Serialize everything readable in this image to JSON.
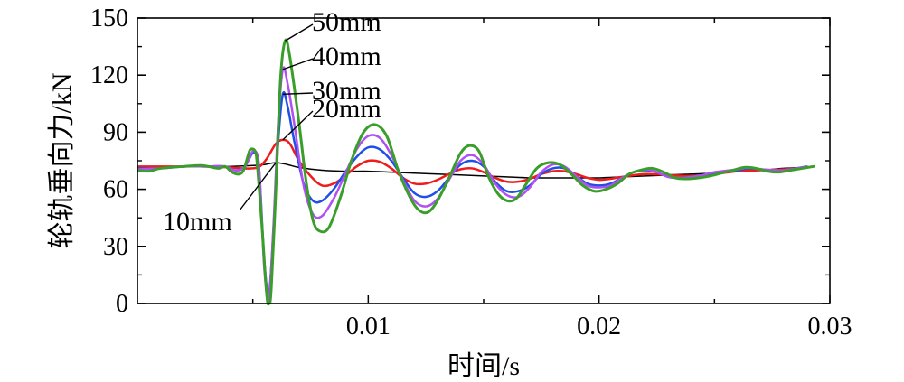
{
  "chart_data": {
    "type": "line",
    "xlabel": "时间/s",
    "ylabel": "轮轨垂向力/kN",
    "xlim": [
      0,
      0.03
    ],
    "ylim": [
      0,
      150
    ],
    "xticks": [
      "0.01",
      "0.02",
      "0.03"
    ],
    "yticks": [
      "0",
      "30",
      "60",
      "90",
      "120",
      "150"
    ],
    "grid": false,
    "series": [
      {
        "name": "10mm",
        "color": "#000000",
        "width": 1.5,
        "points": [
          [
            0,
            71
          ],
          [
            0.001,
            71.5
          ],
          [
            0.002,
            72
          ],
          [
            0.003,
            72
          ],
          [
            0.004,
            72
          ],
          [
            0.005,
            72.5
          ],
          [
            0.0055,
            73
          ],
          [
            0.006,
            74
          ],
          [
            0.0065,
            73
          ],
          [
            0.007,
            71.5
          ],
          [
            0.008,
            70
          ],
          [
            0.009,
            69.5
          ],
          [
            0.01,
            69.5
          ],
          [
            0.011,
            69
          ],
          [
            0.012,
            68.5
          ],
          [
            0.013,
            68
          ],
          [
            0.014,
            67.5
          ],
          [
            0.015,
            67
          ],
          [
            0.016,
            66.5
          ],
          [
            0.017,
            66
          ],
          [
            0.018,
            66
          ],
          [
            0.019,
            66
          ],
          [
            0.02,
            66
          ],
          [
            0.021,
            66.5
          ],
          [
            0.022,
            67
          ],
          [
            0.023,
            67.5
          ],
          [
            0.024,
            68
          ],
          [
            0.025,
            68.5
          ],
          [
            0.026,
            69.5
          ],
          [
            0.027,
            70
          ],
          [
            0.028,
            71
          ],
          [
            0.029,
            71.5
          ]
        ]
      },
      {
        "name": "20mm",
        "color": "#ee1c1c",
        "width": 2.5,
        "points": [
          [
            0,
            72
          ],
          [
            0.001,
            72
          ],
          [
            0.002,
            72
          ],
          [
            0.003,
            72
          ],
          [
            0.004,
            71.5
          ],
          [
            0.0045,
            71
          ],
          [
            0.005,
            71
          ],
          [
            0.0053,
            72
          ],
          [
            0.0056,
            76
          ],
          [
            0.006,
            84
          ],
          [
            0.0063,
            86
          ],
          [
            0.0066,
            84
          ],
          [
            0.007,
            75
          ],
          [
            0.0075,
            67
          ],
          [
            0.008,
            62
          ],
          [
            0.0085,
            63
          ],
          [
            0.009,
            67
          ],
          [
            0.0095,
            72
          ],
          [
            0.01,
            75
          ],
          [
            0.0105,
            74.5
          ],
          [
            0.011,
            71
          ],
          [
            0.0115,
            66
          ],
          [
            0.012,
            63
          ],
          [
            0.0125,
            63
          ],
          [
            0.013,
            65
          ],
          [
            0.0135,
            68
          ],
          [
            0.014,
            70.5
          ],
          [
            0.0145,
            71
          ],
          [
            0.015,
            69
          ],
          [
            0.0155,
            66
          ],
          [
            0.016,
            64
          ],
          [
            0.0165,
            64
          ],
          [
            0.017,
            65.5
          ],
          [
            0.0175,
            68
          ],
          [
            0.018,
            69.5
          ],
          [
            0.0185,
            69.5
          ],
          [
            0.019,
            68
          ],
          [
            0.0195,
            66
          ],
          [
            0.02,
            65
          ],
          [
            0.0205,
            65.5
          ],
          [
            0.021,
            66.5
          ],
          [
            0.022,
            68
          ],
          [
            0.023,
            67.5
          ],
          [
            0.024,
            67
          ],
          [
            0.025,
            68
          ],
          [
            0.026,
            69.5
          ],
          [
            0.027,
            70
          ],
          [
            0.028,
            70.5
          ],
          [
            0.029,
            71.5
          ]
        ]
      },
      {
        "name": "30mm",
        "color": "#1f4fe8",
        "width": 2.5,
        "points": [
          [
            0,
            71
          ],
          [
            0.001,
            71
          ],
          [
            0.002,
            72
          ],
          [
            0.003,
            72
          ],
          [
            0.0038,
            72
          ],
          [
            0.0042,
            70
          ],
          [
            0.0046,
            71
          ],
          [
            0.0048,
            75
          ],
          [
            0.005,
            79
          ],
          [
            0.0052,
            77
          ],
          [
            0.0053,
            66
          ],
          [
            0.0055,
            22
          ],
          [
            0.0057,
            5
          ],
          [
            0.0059,
            40
          ],
          [
            0.0061,
            85
          ],
          [
            0.0063,
            110
          ],
          [
            0.0065,
            104
          ],
          [
            0.0068,
            85
          ],
          [
            0.0072,
            63
          ],
          [
            0.0076,
            54
          ],
          [
            0.008,
            54
          ],
          [
            0.0085,
            60
          ],
          [
            0.009,
            69
          ],
          [
            0.0095,
            77
          ],
          [
            0.01,
            82
          ],
          [
            0.0105,
            81
          ],
          [
            0.011,
            75
          ],
          [
            0.0115,
            66
          ],
          [
            0.012,
            58
          ],
          [
            0.0125,
            56
          ],
          [
            0.013,
            59
          ],
          [
            0.0135,
            66
          ],
          [
            0.014,
            73
          ],
          [
            0.0145,
            75
          ],
          [
            0.015,
            72
          ],
          [
            0.0155,
            64
          ],
          [
            0.016,
            59
          ],
          [
            0.0165,
            59
          ],
          [
            0.017,
            62
          ],
          [
            0.0175,
            68
          ],
          [
            0.018,
            71
          ],
          [
            0.0185,
            71
          ],
          [
            0.019,
            67
          ],
          [
            0.0195,
            63
          ],
          [
            0.02,
            62
          ],
          [
            0.0205,
            63
          ],
          [
            0.021,
            66
          ],
          [
            0.0215,
            69
          ],
          [
            0.022,
            70
          ],
          [
            0.0225,
            69
          ],
          [
            0.023,
            66.5
          ],
          [
            0.0235,
            66
          ],
          [
            0.024,
            66.5
          ],
          [
            0.0245,
            67.5
          ],
          [
            0.025,
            68.5
          ],
          [
            0.026,
            70
          ],
          [
            0.0265,
            71
          ],
          [
            0.027,
            70.5
          ],
          [
            0.028,
            70
          ],
          [
            0.029,
            72
          ]
        ]
      },
      {
        "name": "40mm",
        "color": "#b050f0",
        "width": 2.5,
        "points": [
          [
            0,
            70.5
          ],
          [
            0.001,
            71
          ],
          [
            0.002,
            72
          ],
          [
            0.003,
            72
          ],
          [
            0.0038,
            72
          ],
          [
            0.0042,
            70
          ],
          [
            0.0046,
            71
          ],
          [
            0.0048,
            75
          ],
          [
            0.005,
            80
          ],
          [
            0.0052,
            78
          ],
          [
            0.0053,
            66
          ],
          [
            0.0055,
            18
          ],
          [
            0.0057,
            3
          ],
          [
            0.0059,
            42
          ],
          [
            0.0061,
            95
          ],
          [
            0.0063,
            123
          ],
          [
            0.0065,
            116
          ],
          [
            0.0068,
            94
          ],
          [
            0.0072,
            62
          ],
          [
            0.0076,
            47
          ],
          [
            0.008,
            46
          ],
          [
            0.0085,
            55
          ],
          [
            0.009,
            68
          ],
          [
            0.0095,
            81
          ],
          [
            0.01,
            88
          ],
          [
            0.0105,
            87
          ],
          [
            0.011,
            78
          ],
          [
            0.0115,
            65
          ],
          [
            0.012,
            54
          ],
          [
            0.0125,
            51
          ],
          [
            0.013,
            55
          ],
          [
            0.0135,
            65
          ],
          [
            0.014,
            75
          ],
          [
            0.0145,
            78
          ],
          [
            0.015,
            73
          ],
          [
            0.0155,
            63
          ],
          [
            0.016,
            57
          ],
          [
            0.0165,
            56
          ],
          [
            0.017,
            61
          ],
          [
            0.0175,
            69
          ],
          [
            0.018,
            73
          ],
          [
            0.0185,
            72
          ],
          [
            0.019,
            67
          ],
          [
            0.0195,
            62
          ],
          [
            0.02,
            61
          ],
          [
            0.0205,
            62
          ],
          [
            0.021,
            66
          ],
          [
            0.0215,
            69
          ],
          [
            0.022,
            70.5
          ],
          [
            0.0225,
            69
          ],
          [
            0.023,
            66.5
          ],
          [
            0.0235,
            66
          ],
          [
            0.024,
            66.5
          ],
          [
            0.0245,
            67.5
          ],
          [
            0.025,
            69
          ],
          [
            0.026,
            70.5
          ],
          [
            0.0265,
            71.5
          ],
          [
            0.027,
            70.5
          ],
          [
            0.028,
            70
          ],
          [
            0.029,
            72
          ]
        ]
      },
      {
        "name": "50mm",
        "color": "#3a9e2a",
        "width": 3,
        "points": [
          [
            0,
            70
          ],
          [
            0.0005,
            69.5
          ],
          [
            0.001,
            71
          ],
          [
            0.002,
            72
          ],
          [
            0.0028,
            72.5
          ],
          [
            0.0035,
            71
          ],
          [
            0.0038,
            72
          ],
          [
            0.0041,
            69
          ],
          [
            0.0044,
            68
          ],
          [
            0.0046,
            70
          ],
          [
            0.0048,
            78
          ],
          [
            0.0049,
            81
          ],
          [
            0.0051,
            80
          ],
          [
            0.0052,
            72
          ],
          [
            0.0054,
            40
          ],
          [
            0.0056,
            5
          ],
          [
            0.0057,
            0
          ],
          [
            0.0058,
            8
          ],
          [
            0.006,
            60
          ],
          [
            0.0062,
            118
          ],
          [
            0.0064,
            138
          ],
          [
            0.0066,
            130
          ],
          [
            0.007,
            95
          ],
          [
            0.0073,
            65
          ],
          [
            0.0076,
            44
          ],
          [
            0.0079,
            38
          ],
          [
            0.0083,
            40
          ],
          [
            0.0088,
            56
          ],
          [
            0.0093,
            76
          ],
          [
            0.0098,
            90
          ],
          [
            0.0103,
            94
          ],
          [
            0.0108,
            88
          ],
          [
            0.0113,
            70
          ],
          [
            0.0118,
            56
          ],
          [
            0.0122,
            49
          ],
          [
            0.0126,
            48
          ],
          [
            0.013,
            54
          ],
          [
            0.0135,
            66
          ],
          [
            0.014,
            79
          ],
          [
            0.0144,
            83
          ],
          [
            0.0148,
            80
          ],
          [
            0.0152,
            67
          ],
          [
            0.0156,
            58
          ],
          [
            0.016,
            54
          ],
          [
            0.0164,
            55
          ],
          [
            0.0168,
            62
          ],
          [
            0.0173,
            71
          ],
          [
            0.0178,
            74
          ],
          [
            0.0183,
            73
          ],
          [
            0.0188,
            68
          ],
          [
            0.0193,
            62
          ],
          [
            0.0198,
            59
          ],
          [
            0.0203,
            60
          ],
          [
            0.0208,
            63
          ],
          [
            0.0213,
            68
          ],
          [
            0.0218,
            70
          ],
          [
            0.0223,
            71
          ],
          [
            0.0228,
            69
          ],
          [
            0.0233,
            66
          ],
          [
            0.0238,
            65.5
          ],
          [
            0.0243,
            66
          ],
          [
            0.0248,
            67
          ],
          [
            0.0253,
            68.5
          ],
          [
            0.0258,
            70
          ],
          [
            0.0263,
            71.5
          ],
          [
            0.0268,
            71
          ],
          [
            0.0273,
            69.5
          ],
          [
            0.0278,
            69
          ],
          [
            0.0283,
            70
          ],
          [
            0.0288,
            71
          ],
          [
            0.0293,
            72
          ]
        ]
      }
    ],
    "annotations": [
      {
        "text": "50mm",
        "series": 4
      },
      {
        "text": "40mm",
        "series": 3
      },
      {
        "text": "30mm",
        "series": 2
      },
      {
        "text": "20mm",
        "series": 1
      },
      {
        "text": "10mm",
        "series": 0
      }
    ]
  }
}
